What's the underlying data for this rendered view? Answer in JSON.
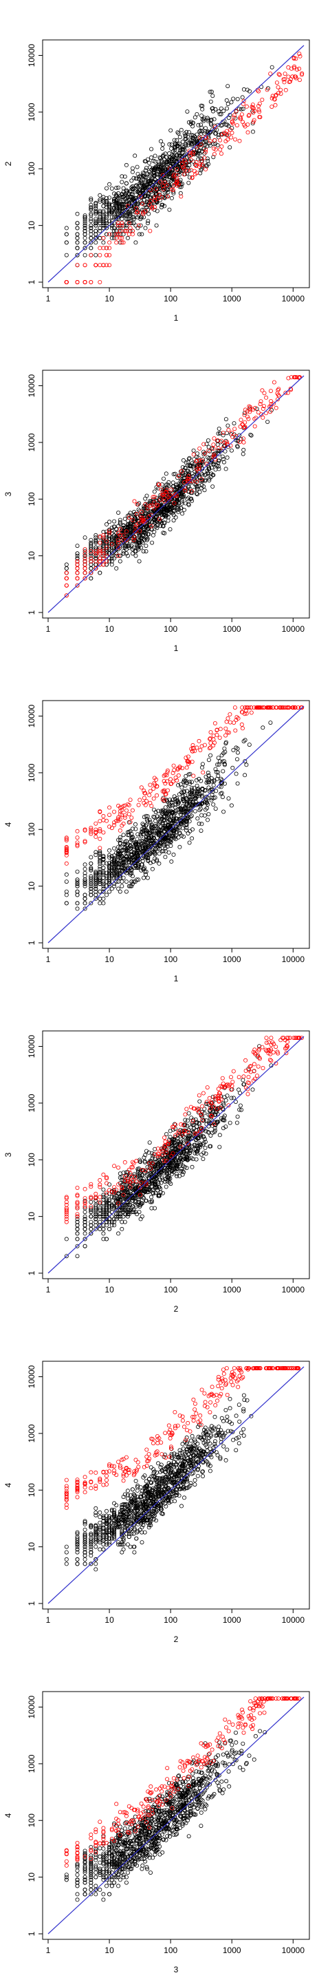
{
  "figure": {
    "description": "Six pairwise log-log scatter plots of sample counts with identity line; black points are non-differential, red points highlighted"
  },
  "colors": {
    "background": "#ffffff",
    "axis": "#000000",
    "black_points": "#000000",
    "red_points": "#ff0000",
    "identity_line": "#3333cc"
  },
  "chart_data": [
    {
      "type": "scatter",
      "log_x": true,
      "log_y": true,
      "xlabel": "1",
      "ylabel": "2",
      "xlim": [
        1,
        15000
      ],
      "ylim": [
        1,
        15000
      ],
      "x_ticks": [
        "1",
        "10",
        "100",
        "1000",
        "10000"
      ],
      "y_ticks": [
        "1",
        "10",
        "100",
        "1000",
        "10000"
      ],
      "identity_line": true,
      "series": [
        {
          "color": "black",
          "pattern": "cloud along diagonal, spread above at low x",
          "ratio": 1.0,
          "spread_log10": 0.55,
          "bias_low": 0.5
        },
        {
          "color": "red",
          "pattern": "band below diagonal (higher in 1)",
          "ratio": 0.5,
          "spread_log10": 0.35,
          "bias_low": -0.4
        }
      ]
    },
    {
      "type": "scatter",
      "log_x": true,
      "log_y": true,
      "xlabel": "1",
      "ylabel": "3",
      "xlim": [
        1,
        15000
      ],
      "ylim": [
        1,
        15000
      ],
      "x_ticks": [
        "1",
        "10",
        "100",
        "1000",
        "10000"
      ],
      "y_ticks": [
        "1",
        "10",
        "100",
        "1000",
        "10000"
      ],
      "identity_line": true,
      "series": [
        {
          "color": "black",
          "pattern": "tight cloud along diagonal",
          "ratio": 1.0,
          "spread_log10": 0.4,
          "bias_low": 0.5
        },
        {
          "color": "red",
          "pattern": "few points slightly above diagonal",
          "ratio": 1.3,
          "spread_log10": 0.3,
          "bias_low": 0.2
        }
      ]
    },
    {
      "type": "scatter",
      "log_x": true,
      "log_y": true,
      "xlabel": "1",
      "ylabel": "4",
      "xlim": [
        1,
        15000
      ],
      "ylim": [
        1,
        15000
      ],
      "x_ticks": [
        "1",
        "10",
        "100",
        "1000",
        "10000"
      ],
      "y_ticks": [
        "1",
        "10",
        "100",
        "1000",
        "10000"
      ],
      "identity_line": true,
      "series": [
        {
          "color": "black",
          "pattern": "cloud on/above diagonal",
          "ratio": 1.3,
          "spread_log10": 0.5,
          "bias_low": 0.5
        },
        {
          "color": "red",
          "pattern": "band well above diagonal (higher in 4)",
          "ratio": 8.0,
          "spread_log10": 0.3,
          "bias_low": 0.6
        }
      ]
    },
    {
      "type": "scatter",
      "log_x": true,
      "log_y": true,
      "xlabel": "2",
      "ylabel": "3",
      "xlim": [
        1,
        15000
      ],
      "ylim": [
        1,
        15000
      ],
      "x_ticks": [
        "1",
        "10",
        "100",
        "1000",
        "10000"
      ],
      "y_ticks": [
        "1",
        "10",
        "100",
        "1000",
        "10000"
      ],
      "identity_line": true,
      "series": [
        {
          "color": "black",
          "pattern": "cloud along diagonal",
          "ratio": 1.0,
          "spread_log10": 0.45,
          "bias_low": 0.4
        },
        {
          "color": "red",
          "pattern": "band above diagonal (higher in 3)",
          "ratio": 2.0,
          "spread_log10": 0.35,
          "bias_low": 0.7
        }
      ]
    },
    {
      "type": "scatter",
      "log_x": true,
      "log_y": true,
      "xlabel": "2",
      "ylabel": "4",
      "xlim": [
        1,
        15000
      ],
      "ylim": [
        1,
        15000
      ],
      "x_ticks": [
        "1",
        "10",
        "100",
        "1000",
        "10000"
      ],
      "y_ticks": [
        "1",
        "10",
        "100",
        "1000",
        "10000"
      ],
      "identity_line": true,
      "series": [
        {
          "color": "black",
          "pattern": "cloud on/above diagonal",
          "ratio": 1.4,
          "spread_log10": 0.5,
          "bias_low": 0.5
        },
        {
          "color": "red",
          "pattern": "band far above diagonal (higher in 4)",
          "ratio": 10.0,
          "spread_log10": 0.3,
          "bias_low": 0.8
        }
      ]
    },
    {
      "type": "scatter",
      "log_x": true,
      "log_y": true,
      "xlabel": "3",
      "ylabel": "4",
      "xlim": [
        1,
        15000
      ],
      "ylim": [
        1,
        15000
      ],
      "x_ticks": [
        "1",
        "10",
        "100",
        "1000",
        "10000"
      ],
      "y_ticks": [
        "1",
        "10",
        "100",
        "1000",
        "10000"
      ],
      "identity_line": true,
      "series": [
        {
          "color": "black",
          "pattern": "cloud on/above diagonal",
          "ratio": 1.3,
          "spread_log10": 0.5,
          "bias_low": 0.5
        },
        {
          "color": "red",
          "pattern": "band above diagonal (higher in 4)",
          "ratio": 4.0,
          "spread_log10": 0.3,
          "bias_low": 0.6
        }
      ]
    }
  ]
}
